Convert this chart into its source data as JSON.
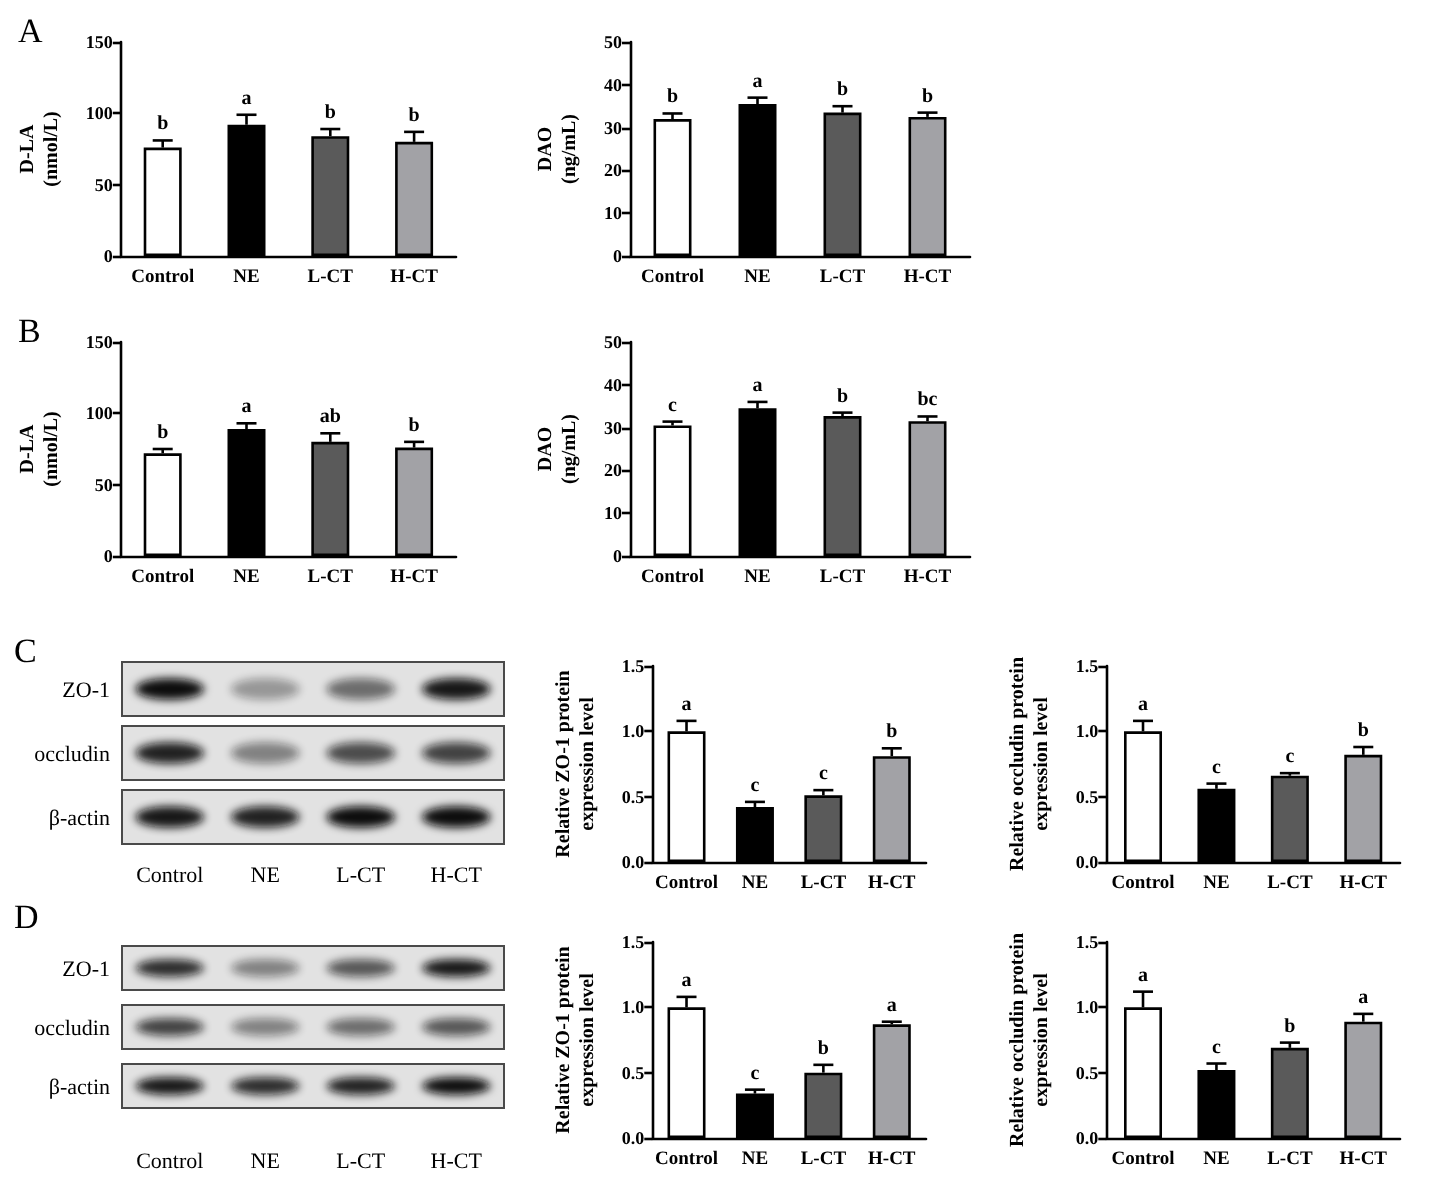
{
  "chart_data": [
    {
      "type": "bar",
      "title": "A",
      "ylabel": "D-LA\n(nmol/L)",
      "categories": [
        "Control",
        "NE",
        "L-CT",
        "H-CT"
      ],
      "values": [
        76,
        92,
        84,
        80
      ],
      "colors": [
        "#ffffff",
        "#000000",
        "#5a5a5a",
        "#a2a2a6"
      ],
      "errors": [
        [
          76,
          81
        ],
        [
          92,
          99
        ],
        [
          84,
          89
        ],
        [
          80,
          87
        ]
      ],
      "ylim": [
        0,
        150
      ],
      "yticks": [
        0,
        50,
        100,
        150
      ],
      "annotations": [
        {
          "text": "b",
          "x": "Control",
          "y": 81
        },
        {
          "text": "a",
          "x": "NE",
          "y": 99
        },
        {
          "text": "b",
          "x": "L-CT",
          "y": 89
        },
        {
          "text": "b",
          "x": "H-CT",
          "y": 87
        }
      ]
    },
    {
      "type": "bar",
      "ylabel": "DAO\n(ng/mL)",
      "categories": [
        "Control",
        "NE",
        "L-CT",
        "H-CT"
      ],
      "values": [
        32,
        35.5,
        33.5,
        32.5
      ],
      "colors": [
        "#ffffff",
        "#000000",
        "#5a5a5a",
        "#a2a2a6"
      ],
      "errors": [
        [
          32,
          33.3
        ],
        [
          35.5,
          37
        ],
        [
          33.5,
          35
        ],
        [
          32.5,
          33.5
        ]
      ],
      "ylim": [
        0,
        50
      ],
      "yticks": [
        0,
        10,
        20,
        30,
        40,
        50
      ],
      "annotations": [
        {
          "text": "b",
          "x": "Control",
          "y": 33.3
        },
        {
          "text": "a",
          "x": "NE",
          "y": 37
        },
        {
          "text": "b",
          "x": "L-CT",
          "y": 35
        },
        {
          "text": "b",
          "x": "H-CT",
          "y": 33.5
        }
      ]
    },
    {
      "type": "bar",
      "title": "B",
      "ylabel": "D-LA\n(nmol/L)",
      "categories": [
        "Control",
        "NE",
        "L-CT",
        "H-CT"
      ],
      "values": [
        72,
        89,
        80,
        76
      ],
      "colors": [
        "#ffffff",
        "#000000",
        "#5a5a5a",
        "#a2a2a6"
      ],
      "errors": [
        [
          72,
          75
        ],
        [
          89,
          93
        ],
        [
          80,
          86
        ],
        [
          76,
          80
        ]
      ],
      "ylim": [
        0,
        150
      ],
      "yticks": [
        0,
        50,
        100,
        150
      ],
      "annotations": [
        {
          "text": "b",
          "x": "Control",
          "y": 75
        },
        {
          "text": "a",
          "x": "NE",
          "y": 93
        },
        {
          "text": "ab",
          "x": "L-CT",
          "y": 86
        },
        {
          "text": "b",
          "x": "H-CT",
          "y": 80
        }
      ]
    },
    {
      "type": "bar",
      "ylabel": "DAO\n(ng/mL)",
      "categories": [
        "Control",
        "NE",
        "L-CT",
        "H-CT"
      ],
      "values": [
        30.5,
        34.5,
        32.7,
        31.5
      ],
      "colors": [
        "#ffffff",
        "#000000",
        "#5a5a5a",
        "#a2a2a6"
      ],
      "errors": [
        [
          30.5,
          31.4
        ],
        [
          34.5,
          36
        ],
        [
          32.7,
          33.5
        ],
        [
          31.5,
          32.6
        ]
      ],
      "ylim": [
        0,
        50
      ],
      "yticks": [
        0,
        10,
        20,
        30,
        40,
        50
      ],
      "annotations": [
        {
          "text": "c",
          "x": "Control",
          "y": 31.4
        },
        {
          "text": "a",
          "x": "NE",
          "y": 36
        },
        {
          "text": "b",
          "x": "L-CT",
          "y": 33.5
        },
        {
          "text": "bc",
          "x": "H-CT",
          "y": 32.6
        }
      ]
    },
    {
      "type": "other",
      "title": "C",
      "categories": [
        "Control",
        "NE",
        "L-CT",
        "H-CT"
      ],
      "y_categories": [
        "ZO-1",
        "occludin",
        "β-actin"
      ]
    },
    {
      "type": "bar",
      "ylabel": "Relative ZO-1 protein\nexpression level",
      "categories": [
        "Control",
        "NE",
        "L-CT",
        "H-CT"
      ],
      "values": [
        1.0,
        0.42,
        0.51,
        0.81
      ],
      "colors": [
        "#ffffff",
        "#000000",
        "#5a5a5a",
        "#a2a2a6"
      ],
      "errors": [
        [
          1.0,
          1.08
        ],
        [
          0.42,
          0.46
        ],
        [
          0.51,
          0.55
        ],
        [
          0.81,
          0.87
        ]
      ],
      "ylim": [
        0,
        1.5
      ],
      "yticks": [
        {
          "value": 0,
          "label": "0.0"
        },
        {
          "value": 0.5,
          "label": "0.5"
        },
        {
          "value": 1,
          "label": "1.0"
        },
        {
          "value": 1.5,
          "label": "1.5"
        }
      ],
      "annotations": [
        {
          "text": "a",
          "x": "Control",
          "y": 1.08
        },
        {
          "text": "c",
          "x": "NE",
          "y": 0.46
        },
        {
          "text": "c",
          "x": "L-CT",
          "y": 0.55
        },
        {
          "text": "b",
          "x": "H-CT",
          "y": 0.87
        }
      ]
    },
    {
      "type": "bar",
      "ylabel": "Relative occludin protein\nexpression level",
      "categories": [
        "Control",
        "NE",
        "L-CT",
        "H-CT"
      ],
      "values": [
        1.0,
        0.56,
        0.66,
        0.82
      ],
      "colors": [
        "#ffffff",
        "#000000",
        "#5a5a5a",
        "#a2a2a6"
      ],
      "errors": [
        [
          1.0,
          1.08
        ],
        [
          0.56,
          0.6
        ],
        [
          0.66,
          0.68
        ],
        [
          0.82,
          0.88
        ]
      ],
      "ylim": [
        0,
        1.5
      ],
      "yticks": [
        {
          "value": 0,
          "label": "0.0"
        },
        {
          "value": 0.5,
          "label": "0.5"
        },
        {
          "value": 1,
          "label": "1.0"
        },
        {
          "value": 1.5,
          "label": "1.5"
        }
      ],
      "annotations": [
        {
          "text": "a",
          "x": "Control",
          "y": 1.08
        },
        {
          "text": "c",
          "x": "NE",
          "y": 0.6
        },
        {
          "text": "c",
          "x": "L-CT",
          "y": 0.68
        },
        {
          "text": "b",
          "x": "H-CT",
          "y": 0.88
        }
      ]
    },
    {
      "type": "other",
      "title": "D",
      "categories": [
        "Control",
        "NE",
        "L-CT",
        "H-CT"
      ],
      "y_categories": [
        "ZO-1",
        "occludin",
        "β-actin"
      ]
    },
    {
      "type": "bar",
      "ylabel": "Relative ZO-1 protein\nexpression level",
      "categories": [
        "Control",
        "NE",
        "L-CT",
        "H-CT"
      ],
      "values": [
        1.0,
        0.34,
        0.5,
        0.87
      ],
      "colors": [
        "#ffffff",
        "#000000",
        "#5a5a5a",
        "#a2a2a6"
      ],
      "errors": [
        [
          1.0,
          1.08
        ],
        [
          0.34,
          0.37
        ],
        [
          0.5,
          0.56
        ],
        [
          0.87,
          0.89
        ]
      ],
      "ylim": [
        0,
        1.5
      ],
      "yticks": [
        {
          "value": 0,
          "label": "0.0"
        },
        {
          "value": 0.5,
          "label": "0.5"
        },
        {
          "value": 1,
          "label": "1.0"
        },
        {
          "value": 1.5,
          "label": "1.5"
        }
      ],
      "annotations": [
        {
          "text": "a",
          "x": "Control",
          "y": 1.08
        },
        {
          "text": "c",
          "x": "NE",
          "y": 0.37
        },
        {
          "text": "b",
          "x": "L-CT",
          "y": 0.56
        },
        {
          "text": "a",
          "x": "H-CT",
          "y": 0.89
        }
      ]
    },
    {
      "type": "bar",
      "ylabel": "Relative occludin protein\nexpression level",
      "categories": [
        "Control",
        "NE",
        "L-CT",
        "H-CT"
      ],
      "values": [
        1.0,
        0.52,
        0.69,
        0.89
      ],
      "colors": [
        "#ffffff",
        "#000000",
        "#5a5a5a",
        "#a2a2a6"
      ],
      "errors": [
        [
          1.0,
          1.12
        ],
        [
          0.52,
          0.57
        ],
        [
          0.69,
          0.73
        ],
        [
          0.89,
          0.95
        ]
      ],
      "ylim": [
        0,
        1.5
      ],
      "yticks": [
        {
          "value": 0,
          "label": "0.0"
        },
        {
          "value": 0.5,
          "label": "0.5"
        },
        {
          "value": 1,
          "label": "1.0"
        },
        {
          "value": 1.5,
          "label": "1.5"
        }
      ],
      "annotations": [
        {
          "text": "a",
          "x": "Control",
          "y": 1.12
        },
        {
          "text": "c",
          "x": "NE",
          "y": 0.57
        },
        {
          "text": "b",
          "x": "L-CT",
          "y": 0.73
        },
        {
          "text": "a",
          "x": "H-CT",
          "y": 0.95
        }
      ]
    }
  ]
}
